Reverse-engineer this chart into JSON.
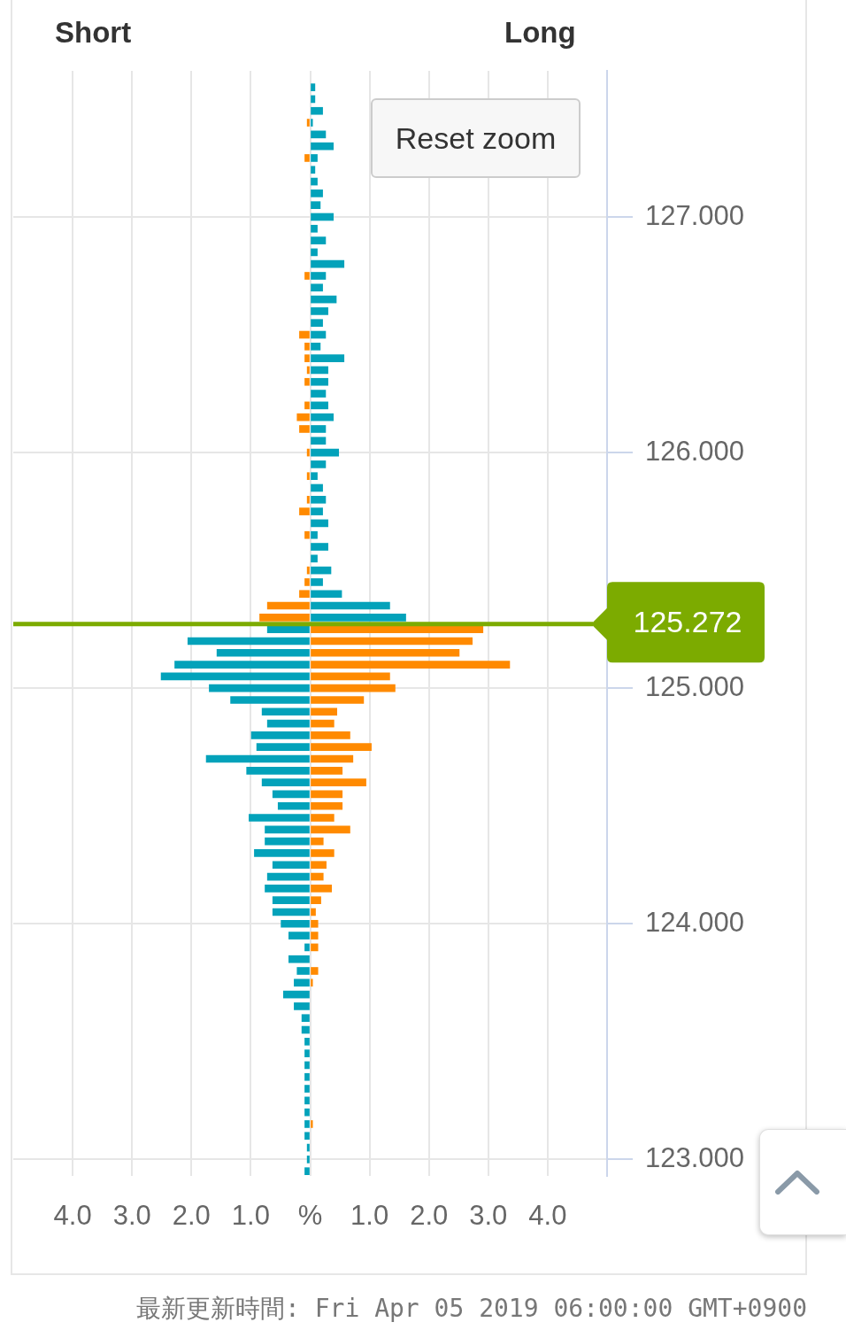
{
  "chart_data": {
    "type": "bar",
    "orientation": "horizontal",
    "stacked": true,
    "annotations": [
      "Short",
      "Long",
      "Reset zoom",
      "最新更新時間: Fri Apr 05 2019 06:00:00 GMT+0900"
    ],
    "x": [
      127.55,
      127.5,
      127.45,
      127.4,
      127.35,
      127.3,
      127.25,
      127.2,
      127.15,
      127.1,
      127.05,
      127,
      126.95,
      126.9,
      126.85,
      126.8,
      126.75,
      126.7,
      126.65,
      126.6,
      126.55,
      126.5,
      126.45,
      126.4,
      126.35,
      126.3,
      126.25,
      126.2,
      126.15,
      126.1,
      126.05,
      126,
      125.95,
      125.9,
      125.85,
      125.8,
      125.75,
      125.7,
      125.65,
      125.6,
      125.55,
      125.5,
      125.45,
      125.4,
      125.35,
      125.3,
      125.25,
      125.2,
      125.15,
      125.1,
      125.05,
      125,
      124.95,
      124.9,
      124.85,
      124.8,
      124.75,
      124.7,
      124.65,
      124.6,
      124.55,
      124.5,
      124.45,
      124.4,
      124.35,
      124.3,
      124.25,
      124.2,
      124.15,
      124.1,
      124.05,
      124,
      123.95,
      123.9,
      123.85,
      123.8,
      123.75,
      123.7,
      123.65,
      123.6,
      123.55,
      123.5,
      123.45,
      123.4,
      123.35,
      123.3,
      123.25,
      123.2,
      123.15,
      123.1,
      123.05,
      123,
      122.95
    ],
    "series": [
      {
        "color": "#03a2ba",
        "values": [
          0.08,
          0.08,
          0.21,
          0.04,
          0.26,
          0.39,
          0.12,
          0.08,
          0.12,
          0.21,
          0.17,
          0.39,
          0.12,
          0.26,
          0.12,
          0.57,
          0.26,
          0.21,
          0.44,
          0.3,
          0.21,
          0.26,
          0.17,
          0.57,
          0.3,
          0.3,
          0.26,
          0.3,
          0.39,
          0.26,
          0.26,
          0.48,
          0.26,
          0.12,
          0.21,
          0.26,
          0.21,
          0.3,
          0.12,
          0.3,
          0.12,
          0.35,
          0.21,
          0.53,
          1.34,
          1.61,
          -0.72,
          -2.06,
          -1.57,
          -2.28,
          -2.51,
          -1.7,
          -1.34,
          -0.81,
          -0.72,
          -0.99,
          -0.9,
          -1.75,
          -1.07,
          -0.81,
          -0.63,
          -0.54,
          -1.03,
          -0.76,
          -0.76,
          -0.94,
          -0.63,
          -0.72,
          -0.76,
          -0.63,
          -0.63,
          -0.49,
          -0.36,
          -0.09,
          -0.36,
          -0.22,
          -0.27,
          -0.45,
          -0.27,
          -0.14,
          -0.14,
          -0.09,
          -0.09,
          -0.09,
          -0.09,
          -0.09,
          -0.09,
          -0.09,
          -0.09,
          -0.09,
          -0.05,
          -0.05,
          -0.09
        ]
      },
      {
        "color": "#ff8a00",
        "values": [
          null,
          null,
          null,
          -0.05,
          null,
          null,
          -0.09,
          null,
          null,
          null,
          null,
          null,
          null,
          null,
          null,
          null,
          -0.09,
          null,
          null,
          null,
          null,
          -0.18,
          -0.09,
          -0.09,
          -0.05,
          -0.09,
          null,
          -0.09,
          -0.22,
          -0.18,
          null,
          -0.05,
          null,
          -0.05,
          null,
          -0.05,
          -0.18,
          null,
          -0.09,
          null,
          null,
          -0.05,
          -0.09,
          -0.18,
          -0.72,
          -0.85,
          2.91,
          2.73,
          2.51,
          3.36,
          1.34,
          1.43,
          0.9,
          0.45,
          0.4,
          0.67,
          1.03,
          0.72,
          0.54,
          0.94,
          0.54,
          0.54,
          0.4,
          0.67,
          0.22,
          0.4,
          0.27,
          0.22,
          0.36,
          0.18,
          0.09,
          0.13,
          0.13,
          0.13,
          null,
          0.13,
          0.04,
          null,
          null,
          null,
          null,
          null,
          null,
          null,
          null,
          null,
          null,
          null,
          0.04,
          null,
          null,
          null,
          null
        ]
      }
    ],
    "xlim": [
      -5,
      5
    ],
    "xticks": [
      {
        "value": -4,
        "label": "4.0"
      },
      {
        "value": -3,
        "label": "3.0"
      },
      {
        "value": -2,
        "label": "2.0"
      },
      {
        "value": -1,
        "label": "1.0"
      },
      {
        "value": 0,
        "label": "%"
      },
      {
        "value": 1,
        "label": "1.0"
      },
      {
        "value": 2,
        "label": "2.0"
      },
      {
        "value": 3,
        "label": "3.0"
      },
      {
        "value": 4,
        "label": "4.0"
      }
    ],
    "ylim": [
      122.93,
      127.62
    ],
    "yticks": [
      {
        "value": 123,
        "label": "123.000"
      },
      {
        "value": 124,
        "label": "124.000"
      },
      {
        "value": 125,
        "label": "125.000"
      },
      {
        "value": 126,
        "label": "126.000"
      },
      {
        "value": 127,
        "label": "127.000"
      }
    ],
    "ref_lines": [
      {
        "axis": "y",
        "value": 125.272,
        "label": "125.272",
        "color": "#7cab00"
      }
    ],
    "grid": true
  }
}
